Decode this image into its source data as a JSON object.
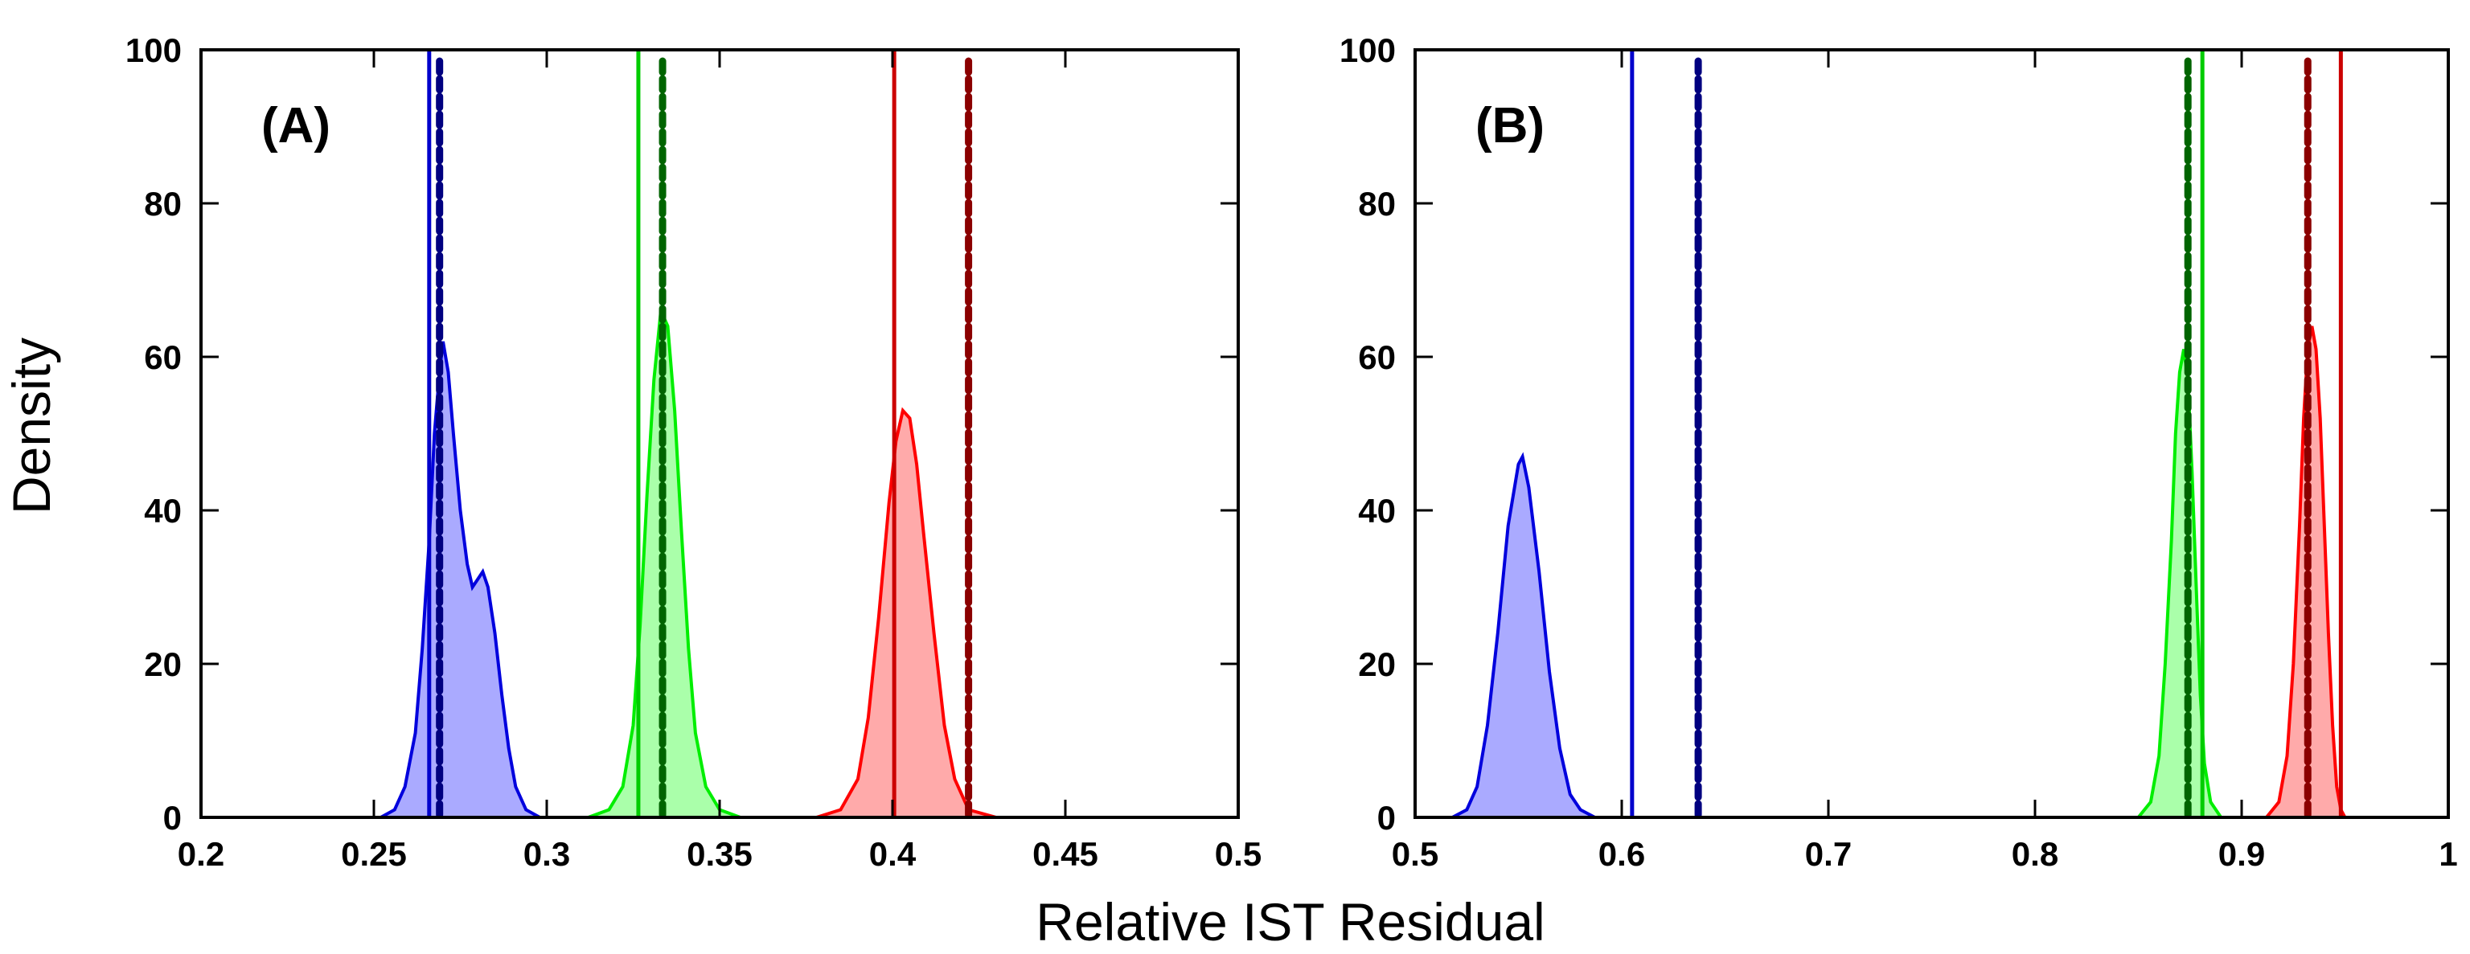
{
  "chart_data": [
    {
      "type": "area",
      "panel_label": "(A)",
      "xlim": [
        0.2,
        0.5
      ],
      "ylim": [
        0,
        100
      ],
      "x_ticks": [
        0.2,
        0.25,
        0.3,
        0.35,
        0.4,
        0.45,
        0.5
      ],
      "x_tick_labels": [
        "0.2",
        "0.25",
        "0.3",
        "0.35",
        "0.4",
        "0.45",
        "0.5"
      ],
      "y_ticks": [
        0,
        20,
        40,
        60,
        80,
        100
      ],
      "y_tick_labels": [
        "0",
        "20",
        "40",
        "60",
        "80",
        "100"
      ],
      "series": [
        {
          "color": "#0000dd",
          "fill": "#aaaaff",
          "points": [
            [
              0.252,
              0
            ],
            [
              0.256,
              1
            ],
            [
              0.259,
              4
            ],
            [
              0.262,
              11
            ],
            [
              0.264,
              22
            ],
            [
              0.266,
              36
            ],
            [
              0.2675,
              50
            ],
            [
              0.269,
              58
            ],
            [
              0.27,
              62
            ],
            [
              0.2715,
              58
            ],
            [
              0.273,
              50
            ],
            [
              0.275,
              40
            ],
            [
              0.277,
              33
            ],
            [
              0.2785,
              30
            ],
            [
              0.28,
              31
            ],
            [
              0.2815,
              32
            ],
            [
              0.283,
              30
            ],
            [
              0.285,
              24
            ],
            [
              0.287,
              16
            ],
            [
              0.289,
              9
            ],
            [
              0.291,
              4
            ],
            [
              0.294,
              1
            ],
            [
              0.298,
              0
            ]
          ]
        },
        {
          "color": "#00ee00",
          "fill": "#aaffaa",
          "points": [
            [
              0.312,
              0
            ],
            [
              0.318,
              1
            ],
            [
              0.322,
              4
            ],
            [
              0.325,
              12
            ],
            [
              0.327,
              25
            ],
            [
              0.329,
              42
            ],
            [
              0.331,
              57
            ],
            [
              0.333,
              66
            ],
            [
              0.335,
              64
            ],
            [
              0.337,
              53
            ],
            [
              0.339,
              37
            ],
            [
              0.341,
              22
            ],
            [
              0.343,
              11
            ],
            [
              0.346,
              4
            ],
            [
              0.35,
              1
            ],
            [
              0.356,
              0
            ]
          ]
        },
        {
          "color": "#ff0000",
          "fill": "#ffaaaa",
          "points": [
            [
              0.378,
              0
            ],
            [
              0.385,
              1
            ],
            [
              0.39,
              5
            ],
            [
              0.393,
              13
            ],
            [
              0.396,
              26
            ],
            [
              0.399,
              41
            ],
            [
              0.401,
              49
            ],
            [
              0.403,
              53
            ],
            [
              0.405,
              52
            ],
            [
              0.407,
              46
            ],
            [
              0.409,
              37
            ],
            [
              0.412,
              24
            ],
            [
              0.415,
              12
            ],
            [
              0.418,
              5
            ],
            [
              0.422,
              1
            ],
            [
              0.43,
              0
            ]
          ]
        }
      ],
      "vlines_solid": [
        {
          "x": 0.266,
          "color": "#0000cc"
        },
        {
          "x": 0.3265,
          "color": "#00cc00"
        },
        {
          "x": 0.4005,
          "color": "#cc0000"
        }
      ],
      "vlines_dashed": [
        {
          "x": 0.269,
          "color": "#000080"
        },
        {
          "x": 0.3335,
          "color": "#006400"
        },
        {
          "x": 0.422,
          "color": "#8b0000"
        }
      ]
    },
    {
      "type": "area",
      "panel_label": "(B)",
      "xlim": [
        0.5,
        1.0
      ],
      "ylim": [
        0,
        100
      ],
      "x_ticks": [
        0.5,
        0.6,
        0.7,
        0.8,
        0.9,
        1.0
      ],
      "x_tick_labels": [
        "0.5",
        "0.6",
        "0.7",
        "0.8",
        "0.9",
        "1"
      ],
      "y_ticks": [
        0,
        20,
        40,
        60,
        80,
        100
      ],
      "y_tick_labels": [
        "0",
        "20",
        "40",
        "60",
        "80",
        "100"
      ],
      "series": [
        {
          "color": "#0000dd",
          "fill": "#aaaaff",
          "points": [
            [
              0.518,
              0
            ],
            [
              0.525,
              1
            ],
            [
              0.53,
              4
            ],
            [
              0.535,
              12
            ],
            [
              0.54,
              24
            ],
            [
              0.545,
              38
            ],
            [
              0.55,
              46
            ],
            [
              0.552,
              47
            ],
            [
              0.555,
              43
            ],
            [
              0.56,
              32
            ],
            [
              0.565,
              19
            ],
            [
              0.57,
              9
            ],
            [
              0.575,
              3
            ],
            [
              0.58,
              1
            ],
            [
              0.587,
              0
            ]
          ]
        },
        {
          "color": "#00ee00",
          "fill": "#aaffaa",
          "points": [
            [
              0.85,
              0
            ],
            [
              0.856,
              2
            ],
            [
              0.86,
              8
            ],
            [
              0.863,
              20
            ],
            [
              0.866,
              36
            ],
            [
              0.868,
              50
            ],
            [
              0.87,
              58
            ],
            [
              0.872,
              61
            ],
            [
              0.874,
              57
            ],
            [
              0.876,
              45
            ],
            [
              0.878,
              30
            ],
            [
              0.88,
              16
            ],
            [
              0.882,
              7
            ],
            [
              0.885,
              2
            ],
            [
              0.89,
              0
            ]
          ]
        },
        {
          "color": "#ff0000",
          "fill": "#ffaaaa",
          "points": [
            [
              0.912,
              0
            ],
            [
              0.918,
              2
            ],
            [
              0.922,
              8
            ],
            [
              0.925,
              20
            ],
            [
              0.928,
              38
            ],
            [
              0.93,
              52
            ],
            [
              0.932,
              61
            ],
            [
              0.934,
              64
            ],
            [
              0.936,
              61
            ],
            [
              0.938,
              52
            ],
            [
              0.94,
              38
            ],
            [
              0.942,
              24
            ],
            [
              0.944,
              12
            ],
            [
              0.946,
              4
            ],
            [
              0.948,
              1
            ],
            [
              0.95,
              0
            ]
          ]
        }
      ],
      "vlines_solid": [
        {
          "x": 0.605,
          "color": "#0000cc"
        },
        {
          "x": 0.881,
          "color": "#00cc00"
        },
        {
          "x": 0.948,
          "color": "#cc0000"
        }
      ],
      "vlines_dashed": [
        {
          "x": 0.637,
          "color": "#000080"
        },
        {
          "x": 0.874,
          "color": "#006400"
        },
        {
          "x": 0.932,
          "color": "#8b0000"
        }
      ]
    }
  ],
  "axes": {
    "xlabel": "Relative IST Residual",
    "ylabel": "Density"
  }
}
